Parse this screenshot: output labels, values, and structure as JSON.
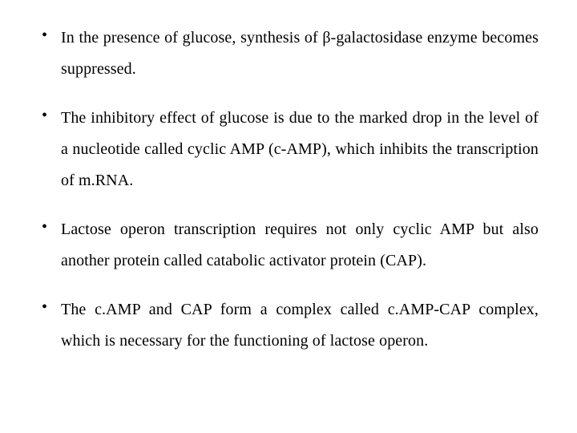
{
  "document": {
    "background_color": "#ffffff",
    "text_color": "#000000",
    "font_family": "Times New Roman",
    "font_size_pt": 15,
    "line_height": 1.95,
    "text_align": "justify",
    "bullets": [
      {
        "text": "In the presence of glucose, synthesis of β-galactosidase enzyme becomes suppressed."
      },
      {
        "text": "The inhibitory effect of glucose is due to the marked drop in the level of a nucleotide called cyclic AMP (c-AMP), which inhibits the transcription of m.RNA."
      },
      {
        "text": "Lactose operon transcription requires not only cyclic AMP but also another protein called catabolic activator protein (CAP)."
      },
      {
        "text": "The c.AMP and CAP form a complex called c.AMP-CAP complex, which is necessary for the functioning of lactose operon."
      }
    ]
  }
}
